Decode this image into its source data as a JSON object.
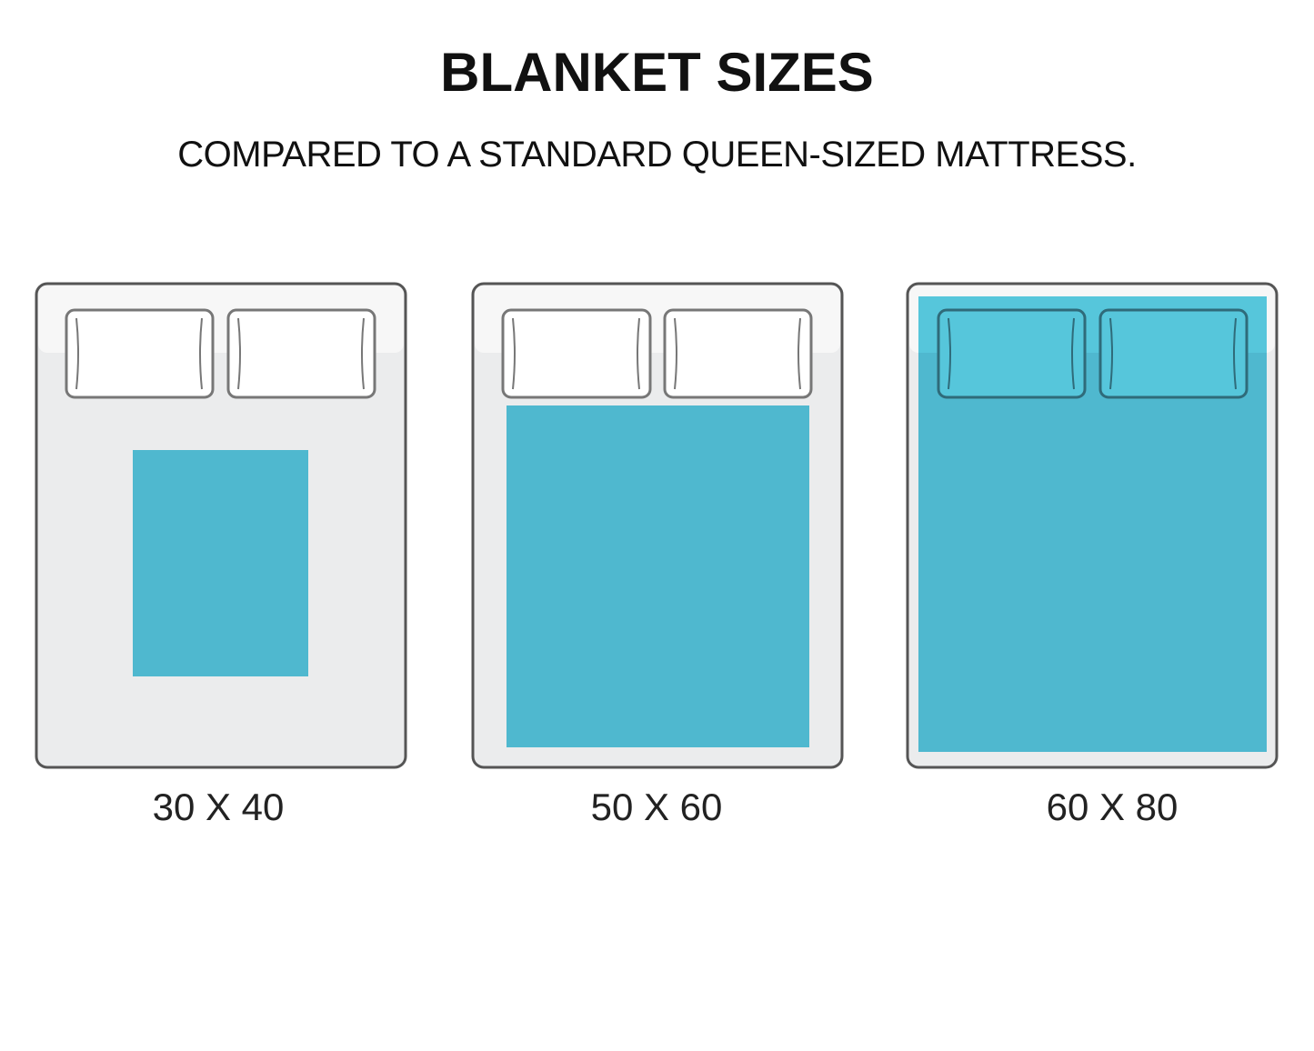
{
  "title": "BLANKET SIZES",
  "subtitle": "COMPARED TO A STANDARD QUEEN-SIZED MATTRESS.",
  "colors": {
    "blanket": "#4fb8cf",
    "blanket_light": "#56c6db",
    "mattress": "#ebeced",
    "mattress_top": "#f7f7f7",
    "outline": "#555555"
  },
  "beds": [
    {
      "label": "30 X 40"
    },
    {
      "label": "50 X 60"
    },
    {
      "label": "60 X 80"
    }
  ]
}
